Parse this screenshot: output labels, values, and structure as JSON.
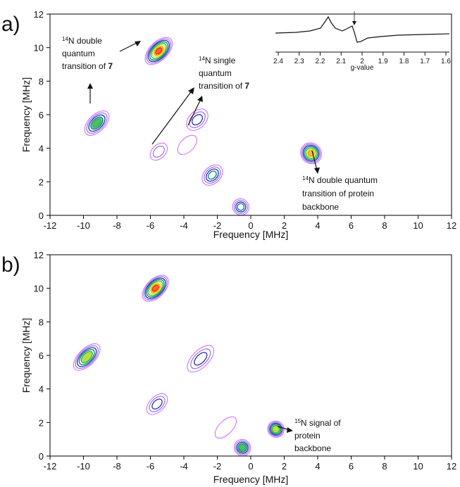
{
  "chart_data": [
    {
      "type": "contour",
      "panel_label": "a)",
      "xlabel": "Frequency [MHz]",
      "ylabel": "Frequency [MHz]",
      "xlim": [
        -12,
        12
      ],
      "ylim": [
        0,
        12
      ],
      "x_ticks": [
        -12,
        -10,
        -8,
        -6,
        -4,
        -2,
        0,
        2,
        4,
        6,
        8,
        10,
        12
      ],
      "y_ticks": [
        0,
        2,
        4,
        6,
        8,
        10,
        12
      ],
      "grid": false,
      "contour_colors": [
        "#cc66ff",
        "#9a7cf0",
        "#2b2fa8",
        "#00897b",
        "#33bb33",
        "#cfe11a",
        "#ff9900",
        "#ff2200"
      ],
      "peaks": [
        {
          "x": -5.5,
          "y": 9.8,
          "span": 1.4,
          "width": 0.35,
          "levels": 8
        },
        {
          "x": -9.2,
          "y": 5.5,
          "span": 1.2,
          "width": 0.3,
          "levels": 5
        },
        {
          "x": -3.2,
          "y": 5.7,
          "span": 0.9,
          "width": 0.3,
          "levels": 3
        },
        {
          "x": -2.3,
          "y": 2.4,
          "span": 0.8,
          "width": 0.3,
          "levels": 4
        },
        {
          "x": -0.6,
          "y": 0.5,
          "span": 0.35,
          "width": 0.3,
          "levels": 4
        },
        {
          "x": 3.6,
          "y": 3.7,
          "span": 0.6,
          "width": 0.45,
          "levels": 7
        },
        {
          "x": -5.5,
          "y": 3.8,
          "span": 0.6,
          "width": 0.2,
          "levels": 2
        },
        {
          "x": -3.8,
          "y": 4.2,
          "span": 0.8,
          "width": 0.2,
          "levels": 1
        }
      ],
      "annotations": [
        {
          "pre": "",
          "sup": "14",
          "lines": [
            "N double",
            "quantum",
            "transition of "
          ],
          "bold": "7"
        },
        {
          "pre": "",
          "sup": "14",
          "lines": [
            "N single",
            "quantum",
            "transition of "
          ],
          "bold": "7"
        },
        {
          "pre": "",
          "sup": "14",
          "lines": [
            "N double quantum",
            "transition of protein",
            "backbone"
          ],
          "bold": ""
        }
      ],
      "inset": {
        "xlabel": "g-value",
        "ticks": [
          "2.4",
          "2.3",
          "2.2",
          "2.1",
          "2",
          "1.9",
          "1.8",
          "1.7",
          "1.6"
        ]
      }
    },
    {
      "type": "contour",
      "panel_label": "b)",
      "xlabel": "Frequency [MHz]",
      "ylabel": "Frequency [MHz]",
      "xlim": [
        -12,
        12
      ],
      "ylim": [
        0,
        12
      ],
      "x_ticks": [
        -12,
        -10,
        -8,
        -6,
        -4,
        -2,
        0,
        2,
        4,
        6,
        8,
        10,
        12
      ],
      "y_ticks": [
        0,
        2,
        4,
        6,
        8,
        10,
        12
      ],
      "grid": false,
      "contour_colors": [
        "#cc66ff",
        "#9a7cf0",
        "#2b2fa8",
        "#00897b",
        "#33bb33",
        "#cfe11a",
        "#ff9900",
        "#ff2200"
      ],
      "peaks": [
        {
          "x": -5.7,
          "y": 10.0,
          "span": 1.3,
          "width": 0.35,
          "levels": 8
        },
        {
          "x": -9.8,
          "y": 5.9,
          "span": 1.4,
          "width": 0.3,
          "levels": 6
        },
        {
          "x": -3.0,
          "y": 5.8,
          "span": 1.4,
          "width": 0.3,
          "levels": 3
        },
        {
          "x": -5.6,
          "y": 3.1,
          "span": 0.9,
          "width": 0.25,
          "levels": 3
        },
        {
          "x": -0.5,
          "y": 0.5,
          "span": 0.35,
          "width": 0.3,
          "levels": 5
        },
        {
          "x": 1.5,
          "y": 1.6,
          "span": 0.35,
          "width": 0.3,
          "levels": 6
        },
        {
          "x": -1.5,
          "y": 1.7,
          "span": 1.0,
          "width": 0.2,
          "levels": 1
        }
      ],
      "annotations": [
        {
          "pre": "",
          "sup": "15",
          "lines": [
            "N signal of",
            "protein",
            "backbone"
          ],
          "bold": ""
        }
      ]
    }
  ]
}
